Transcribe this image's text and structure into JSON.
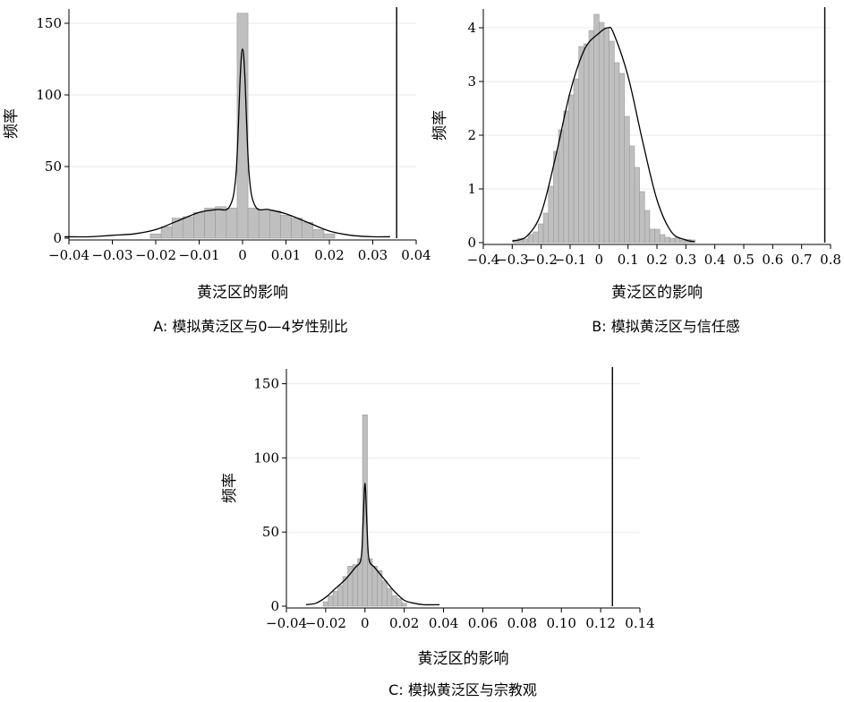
{
  "chart_data": [
    {
      "type": "bar",
      "panel": "A",
      "caption": "A: 模拟黄泛区与0—4岁性别比",
      "xlabel": "黄泛区的影响",
      "ylabel": "频率",
      "xlim": [
        -0.04,
        0.04
      ],
      "ylim": [
        0,
        160
      ],
      "xticks": [
        -0.04,
        -0.03,
        -0.02,
        -0.01,
        0,
        0.01,
        0.02,
        0.03,
        0.04
      ],
      "xtick_labels": [
        "−0.04",
        "−0.03",
        "−0.02",
        "−0.01",
        "0",
        "0.01",
        "0.02",
        "0.03",
        "0.04"
      ],
      "yticks": [
        0,
        50,
        100,
        150
      ],
      "ytick_labels": [
        "0",
        "50",
        "100",
        "150"
      ],
      "bins": {
        "width": 0.0025,
        "left": [
          -0.02125,
          -0.01875,
          -0.01625,
          -0.01375,
          -0.01125,
          -0.00875,
          -0.00625,
          -0.00375,
          -0.00125,
          0.00125,
          0.00375,
          0.00625,
          0.00875,
          0.01125,
          0.01375,
          0.01625,
          0.01875
        ],
        "heights": [
          3,
          8,
          14,
          15,
          18,
          21,
          22,
          21,
          157,
          21,
          20,
          19,
          16,
          14,
          11,
          6,
          3
        ]
      },
      "density": {
        "x": [
          -0.041,
          -0.035,
          -0.03,
          -0.025,
          -0.02,
          -0.015,
          -0.01,
          -0.006,
          -0.003,
          -0.0015,
          -0.0005,
          0,
          0.0005,
          0.0015,
          0.003,
          0.006,
          0.01,
          0.015,
          0.02,
          0.025,
          0.03,
          0.034
        ],
        "y": [
          1,
          1,
          2,
          3,
          6,
          12,
          18,
          20,
          22,
          45,
          115,
          132,
          115,
          45,
          22,
          20,
          17,
          11,
          5,
          2,
          1,
          1
        ]
      },
      "vline": 0.0355
    },
    {
      "type": "bar",
      "panel": "B",
      "caption": "B: 模拟黄泛区与信任感",
      "xlabel": "黄泛区的影响",
      "ylabel": "频率",
      "xlim": [
        -0.4,
        0.8
      ],
      "ylim": [
        0,
        4.35
      ],
      "xticks": [
        -0.4,
        -0.3,
        -0.2,
        -0.1,
        0,
        0.1,
        0.2,
        0.3,
        0.4,
        0.5,
        0.6,
        0.7,
        0.8
      ],
      "xtick_labels": [
        "−0.4",
        "−0.3",
        "−0.2",
        "−0.1",
        "0",
        "0.1",
        "0.2",
        "0.3",
        "0.4",
        "0.5",
        "0.6",
        "0.7",
        "0.8"
      ],
      "yticks": [
        0,
        1,
        2,
        3,
        4
      ],
      "ytick_labels": [
        "0",
        "1",
        "2",
        "3",
        "4"
      ],
      "bins": {
        "width": 0.0175,
        "left": [
          -0.2975,
          -0.28,
          -0.2625,
          -0.245,
          -0.2275,
          -0.21,
          -0.1925,
          -0.175,
          -0.1575,
          -0.14,
          -0.1225,
          -0.105,
          -0.0875,
          -0.07,
          -0.0525,
          -0.035,
          -0.0175,
          0,
          0.0175,
          0.035,
          0.0525,
          0.07,
          0.0875,
          0.105,
          0.1225,
          0.14,
          0.1575,
          0.175,
          0.1925,
          0.21,
          0.2275,
          0.245,
          0.2625,
          0.28,
          0.2975,
          0.315
        ],
        "heights": [
          0.05,
          0.08,
          0.07,
          0.15,
          0.2,
          0.35,
          0.55,
          1.05,
          1.7,
          2.1,
          2.45,
          2.75,
          3.05,
          3.65,
          3.7,
          3.95,
          4.25,
          4.1,
          4.0,
          3.75,
          3.35,
          3.15,
          2.35,
          1.8,
          1.4,
          0.95,
          0.6,
          0.25,
          0.25,
          0.15,
          0.1,
          0.08,
          0.1,
          0.05,
          0.06,
          0.05
        ]
      },
      "density": {
        "x": [
          -0.3,
          -0.25,
          -0.2,
          -0.15,
          -0.1,
          -0.05,
          0,
          0.03,
          0.05,
          0.1,
          0.15,
          0.2,
          0.25,
          0.3,
          0.33
        ],
        "y": [
          0.03,
          0.12,
          0.55,
          1.6,
          2.8,
          3.6,
          3.9,
          4.0,
          3.9,
          3.1,
          1.9,
          0.8,
          0.2,
          0.05,
          0.02
        ]
      },
      "vline": 0.78
    },
    {
      "type": "bar",
      "panel": "C",
      "caption": "C: 模拟黄泛区与宗教观",
      "xlabel": "黄泛区的影响",
      "ylabel": "频率",
      "xlim": [
        -0.04,
        0.14
      ],
      "ylim": [
        0,
        160
      ],
      "xticks": [
        -0.04,
        -0.02,
        0,
        0.02,
        0.04,
        0.06,
        0.08,
        0.1,
        0.12,
        0.14
      ],
      "xtick_labels": [
        "−0.04",
        "−0.02",
        "0",
        "0.02",
        "0.04",
        "0.06",
        "0.08",
        "0.10",
        "0.12",
        "0.14"
      ],
      "yticks": [
        0,
        50,
        100,
        150
      ],
      "ytick_labels": [
        "0",
        "50",
        "100",
        "150"
      ],
      "bins": {
        "width": 0.0025,
        "left": [
          -0.02125,
          -0.01875,
          -0.01625,
          -0.01375,
          -0.01125,
          -0.00875,
          -0.00625,
          -0.00375,
          -0.00125,
          0.00125,
          0.00375,
          0.00625,
          0.00875,
          0.01125,
          0.01375,
          0.01625,
          0.01875
        ],
        "heights": [
          3,
          7,
          10,
          14,
          20,
          27,
          28,
          32,
          129,
          32,
          27,
          24,
          17,
          12,
          7,
          5,
          2
        ]
      },
      "density": {
        "x": [
          -0.03,
          -0.025,
          -0.02,
          -0.015,
          -0.01,
          -0.005,
          -0.002,
          -0.001,
          0,
          0.001,
          0.002,
          0.005,
          0.01,
          0.015,
          0.02,
          0.025,
          0.03,
          0.038
        ],
        "y": [
          1,
          2,
          6,
          12,
          18,
          26,
          32,
          55,
          83,
          55,
          32,
          26,
          18,
          10,
          4,
          2,
          1,
          1
        ]
      },
      "vline": 0.126
    }
  ]
}
